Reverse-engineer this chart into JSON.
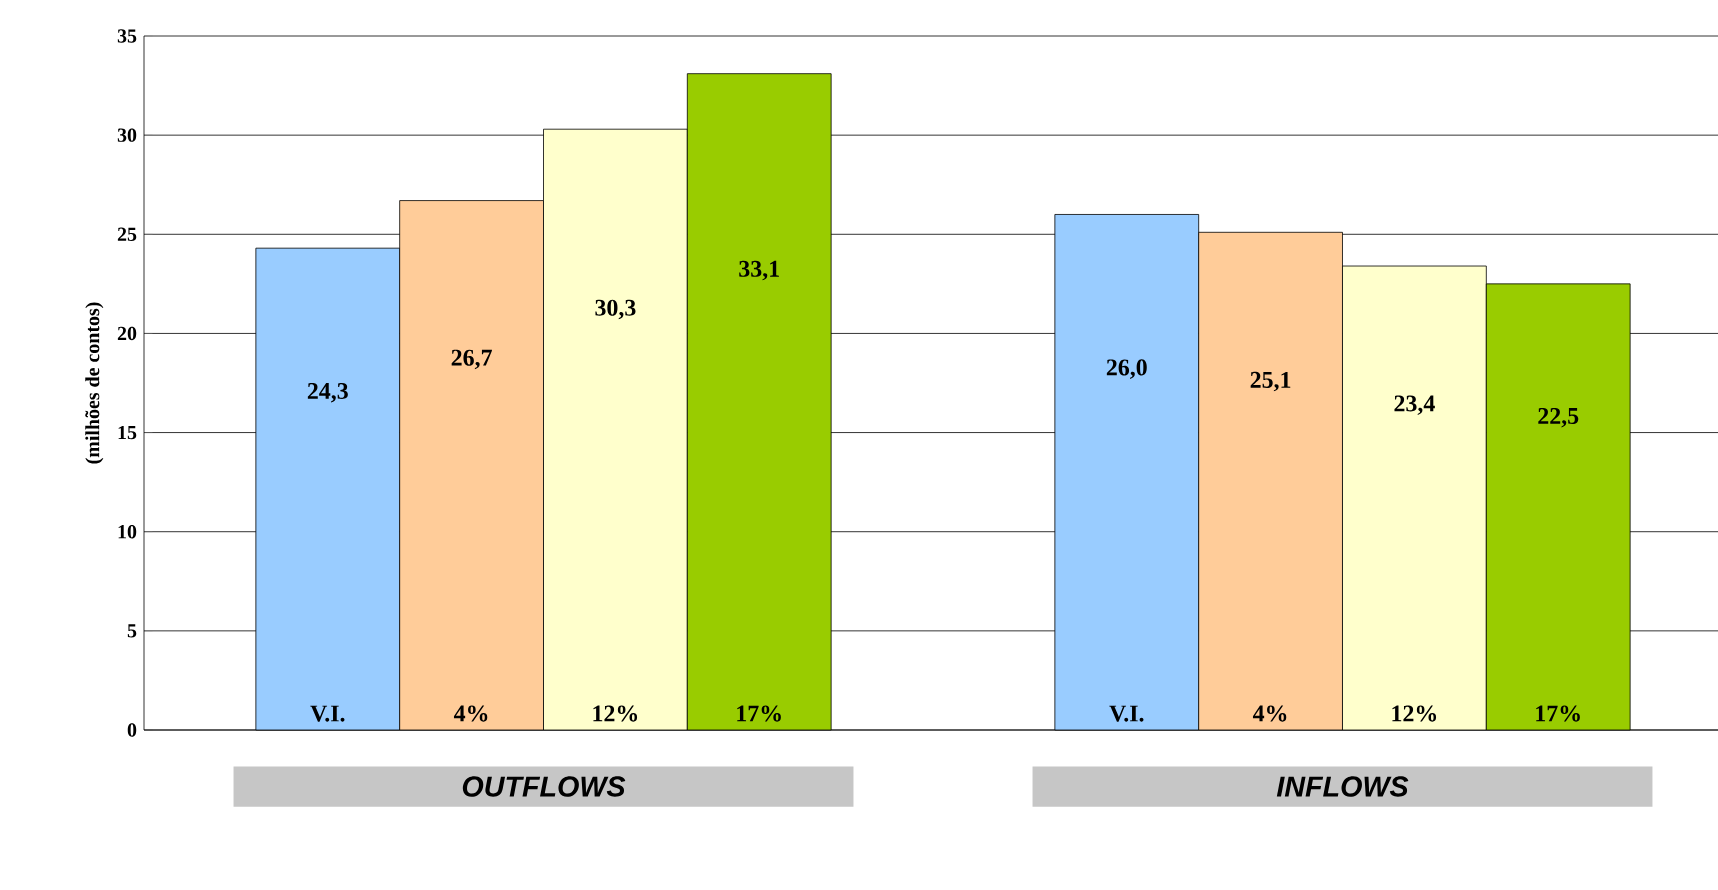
{
  "chart_data": {
    "type": "bar",
    "ylabel": "(milhões de contos)",
    "categories": [
      "OUTFLOWS",
      "INFLOWS"
    ],
    "series": [
      {
        "name": "V.I.",
        "color": "#99ccff",
        "values": [
          24.3,
          26.0
        ],
        "value_labels": [
          "24,3",
          "26,0"
        ]
      },
      {
        "name": "4%",
        "color": "#ffcc99",
        "values": [
          26.7,
          25.1
        ],
        "value_labels": [
          "26,7",
          "25,1"
        ]
      },
      {
        "name": "12%",
        "color": "#ffffcc",
        "values": [
          30.3,
          23.4
        ],
        "value_labels": [
          "30,3",
          "23,4"
        ]
      },
      {
        "name": "17%",
        "color": "#99cc00",
        "values": [
          33.1,
          22.5
        ],
        "value_labels": [
          "33,1",
          "22,5"
        ]
      }
    ],
    "ylim": [
      0,
      35
    ],
    "yticks": [
      0,
      5,
      10,
      15,
      20,
      25,
      30,
      35
    ],
    "grid": "y"
  }
}
